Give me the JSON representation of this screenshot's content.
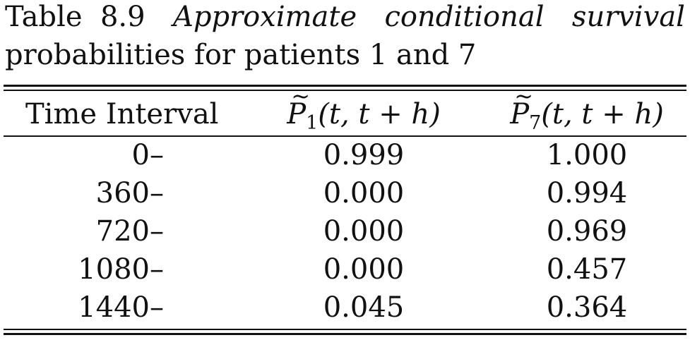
{
  "caption": {
    "label": "Table",
    "number": "8.9",
    "title_line1_words": [
      "Approximate",
      "conditional",
      "survival"
    ],
    "title_line2": "probabilities for patients 1 and 7"
  },
  "headers": {
    "time_interval": "Time Interval",
    "p1_symbol": "P",
    "p1_sub": "1",
    "p1_args": "(t, t + h)",
    "p7_symbol": "P",
    "p7_sub": "7",
    "p7_args": "(t, t + h)"
  },
  "rows": [
    {
      "interval": "0–",
      "p1": "0.999",
      "p7": "1.000"
    },
    {
      "interval": "360–",
      "p1": "0.000",
      "p7": "0.994"
    },
    {
      "interval": "720–",
      "p1": "0.000",
      "p7": "0.969"
    },
    {
      "interval": "1080–",
      "p1": "0.000",
      "p7": "0.457"
    },
    {
      "interval": "1440–",
      "p1": "0.045",
      "p7": "0.364"
    }
  ]
}
